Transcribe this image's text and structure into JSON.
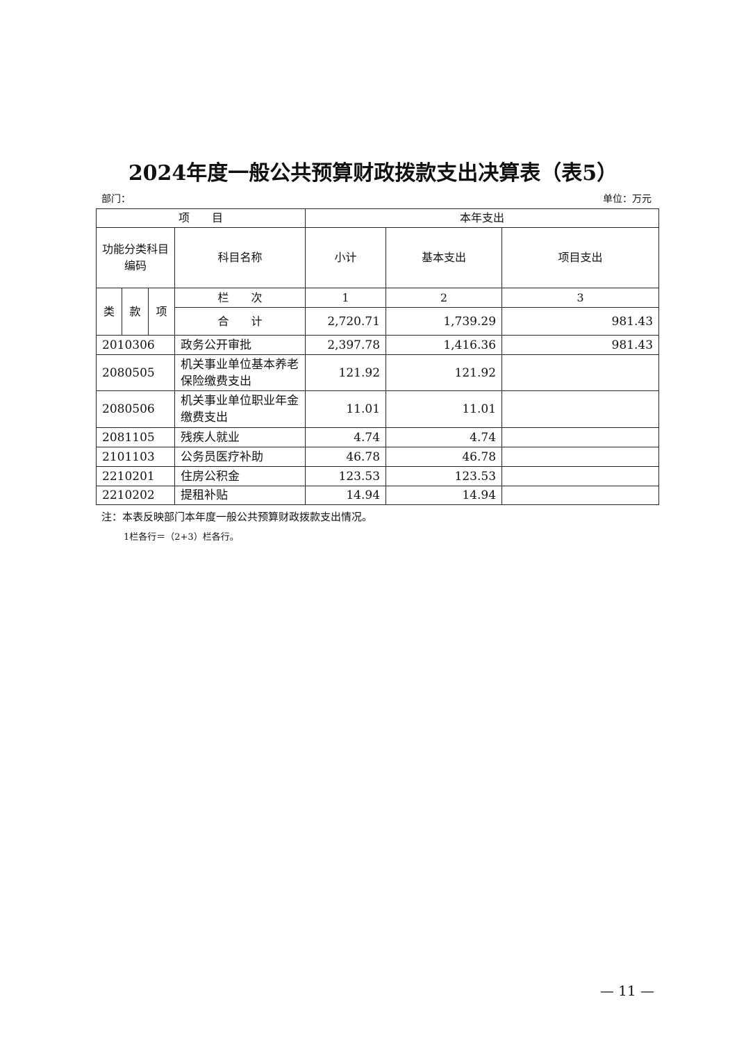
{
  "title": "2024年度一般公共预算财政拨款支出决算表（表5）",
  "department_label": "部门：",
  "unit_label": "单位：万元",
  "header": {
    "item": "项　　目",
    "current_year": "本年支出",
    "code": "功能分类科目编码",
    "name": "科目名称",
    "subtotal": "小计",
    "basic": "基本支出",
    "project": "项目支出",
    "lei": "类",
    "kuan": "款",
    "xiang": "项",
    "column_no": "栏　　次",
    "col1": "1",
    "col2": "2",
    "col3": "3",
    "total_label": "合　　计"
  },
  "total": {
    "subtotal": "2,720.71",
    "basic": "1,739.29",
    "project": "981.43"
  },
  "rows": [
    {
      "code": "2010306",
      "name": "政务公开审批",
      "subtotal": "2,397.78",
      "basic": "1,416.36",
      "project": "981.43"
    },
    {
      "code": "2080505",
      "name": "机关事业单位基本养老保险缴费支出",
      "subtotal": "121.92",
      "basic": "121.92",
      "project": ""
    },
    {
      "code": "2080506",
      "name": "机关事业单位职业年金缴费支出",
      "subtotal": "11.01",
      "basic": "11.01",
      "project": ""
    },
    {
      "code": "2081105",
      "name": "残疾人就业",
      "subtotal": "4.74",
      "basic": "4.74",
      "project": ""
    },
    {
      "code": "2101103",
      "name": "公务员医疗补助",
      "subtotal": "46.78",
      "basic": "46.78",
      "project": ""
    },
    {
      "code": "2210201",
      "name": "住房公积金",
      "subtotal": "123.53",
      "basic": "123.53",
      "project": ""
    },
    {
      "code": "2210202",
      "name": "提租补贴",
      "subtotal": "14.94",
      "basic": "14.94",
      "project": ""
    }
  ],
  "notes": [
    "注：本表反映部门本年度一般公共预算财政拨款支出情况。",
    "1栏各行＝（2+3）栏各行。"
  ],
  "page_number": "— 11 —"
}
